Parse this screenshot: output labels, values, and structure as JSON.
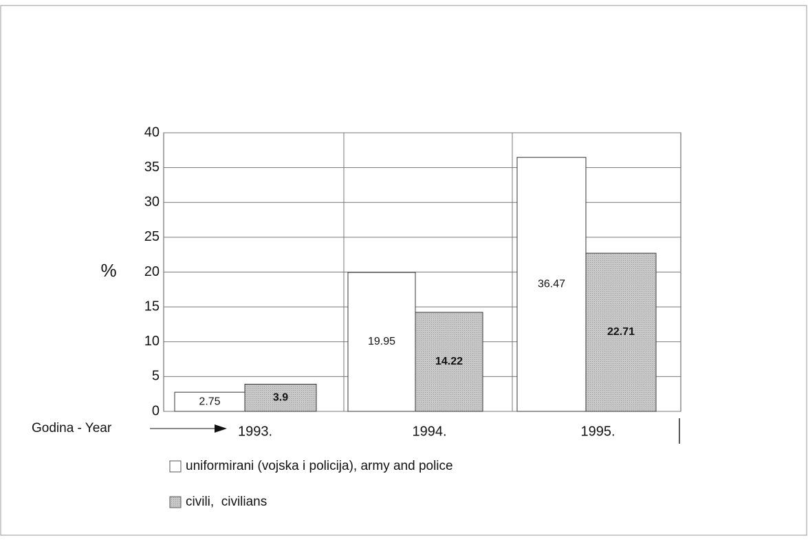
{
  "chart_data": {
    "type": "bar",
    "y_label": "%",
    "x_label": "Godina - Year",
    "categories": [
      "1993.",
      "1994.",
      "1995."
    ],
    "series": [
      {
        "name": "uniformirani (vojska i policija), army and police",
        "color": "#ffffff",
        "values": [
          2.75,
          19.95,
          36.47
        ]
      },
      {
        "name": "civili,  civilians",
        "color": "#c4c4c4",
        "values": [
          3.9,
          14.22,
          22.71
        ]
      }
    ],
    "ylim": [
      0,
      40
    ],
    "yticks": [
      0,
      5,
      10,
      15,
      20,
      25,
      30,
      35,
      40
    ],
    "grid": true
  }
}
